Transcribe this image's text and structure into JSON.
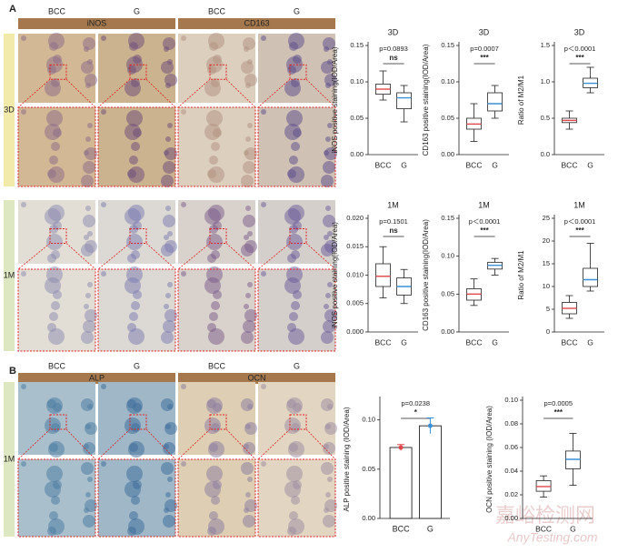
{
  "figure": {
    "panel_a": "A",
    "panel_b": "B",
    "a_headers": [
      "BCC",
      "G",
      "BCC",
      "G"
    ],
    "a_stains": [
      "iNOS",
      "CD163"
    ],
    "a_rows": [
      "3D",
      "1M"
    ],
    "b_headers": [
      "BCC",
      "G",
      "BCC",
      "G"
    ],
    "b_stains": [
      "ALP",
      "OCN"
    ],
    "b_row": "1M",
    "watermark_cn": "嘉峪检测网",
    "watermark_en": "AnyTesting.com"
  },
  "chart_data": [
    {
      "type": "box",
      "title": "3D",
      "ylabel": "iNOS positive staining(IOD/Area)",
      "ylim": [
        0,
        0.15
      ],
      "yticks": [
        {
          "value": 0,
          "label": "0.00"
        },
        0.05,
        {
          "value": 0.1,
          "label": "0.10"
        },
        0.15
      ],
      "annotation": {
        "p": "p=0.0893",
        "sig": "ns"
      },
      "series": [
        {
          "name": "BCC",
          "color": "#e0474c",
          "min": 0.075,
          "q1": 0.083,
          "median": 0.09,
          "q3": 0.097,
          "max": 0.115
        },
        {
          "name": "G",
          "color": "#3b8fd6",
          "min": 0.045,
          "q1": 0.063,
          "median": 0.078,
          "q3": 0.085,
          "max": 0.095
        }
      ]
    },
    {
      "type": "box",
      "title": "3D",
      "ylabel": "CD163 positive staining(IOD/Area)",
      "ylim": [
        0,
        0.15
      ],
      "yticks": [
        {
          "value": 0,
          "label": "0.00"
        },
        0.05,
        {
          "value": 0.1,
          "label": "0.10"
        },
        0.15
      ],
      "annotation": {
        "p": "p=0.0007",
        "sig": "***"
      },
      "series": [
        {
          "name": "BCC",
          "color": "#e0474c",
          "min": 0.018,
          "q1": 0.035,
          "median": 0.042,
          "q3": 0.05,
          "max": 0.07
        },
        {
          "name": "G",
          "color": "#3b8fd6",
          "min": 0.05,
          "q1": 0.06,
          "median": 0.07,
          "q3": 0.085,
          "max": 0.095
        }
      ]
    },
    {
      "type": "box",
      "title": "3D",
      "ylabel": "Ratio of M2/M1",
      "ylim": [
        0,
        1.5
      ],
      "yticks": [
        {
          "value": 0,
          "label": "0.0"
        },
        0.5,
        {
          "value": 1,
          "label": "1.0"
        },
        1.5
      ],
      "annotation": {
        "p": "p＜0.0001",
        "sig": "***"
      },
      "series": [
        {
          "name": "BCC",
          "color": "#e0474c",
          "min": 0.35,
          "q1": 0.44,
          "median": 0.47,
          "q3": 0.5,
          "max": 0.6
        },
        {
          "name": "G",
          "color": "#3b8fd6",
          "min": 0.85,
          "q1": 0.92,
          "median": 0.98,
          "q3": 1.05,
          "max": 1.2
        }
      ]
    },
    {
      "type": "box",
      "title": "1M",
      "ylabel": "iNOS positive staining(IOD/Area)",
      "ylim": [
        0,
        0.02
      ],
      "yticks": [
        {
          "value": 0,
          "label": "0.000"
        },
        0.005,
        {
          "value": 0.01,
          "label": "0.010"
        },
        0.015,
        {
          "value": 0.02,
          "label": "0.020"
        }
      ],
      "annotation": {
        "p": "p=0.1501",
        "sig": "ns"
      },
      "series": [
        {
          "name": "BCC",
          "color": "#e0474c",
          "min": 0.006,
          "q1": 0.008,
          "median": 0.0098,
          "q3": 0.012,
          "max": 0.015
        },
        {
          "name": "G",
          "color": "#3b8fd6",
          "min": 0.005,
          "q1": 0.0065,
          "median": 0.008,
          "q3": 0.0095,
          "max": 0.011
        }
      ]
    },
    {
      "type": "box",
      "title": "1M",
      "ylabel": "CD163 positive staining(IOD/Area)",
      "ylim": [
        0,
        0.15
      ],
      "yticks": [
        {
          "value": 0,
          "label": "0.00"
        },
        0.05,
        {
          "value": 0.1,
          "label": "0.10"
        },
        0.15
      ],
      "annotation": {
        "p": "p＜0.0001",
        "sig": "***"
      },
      "series": [
        {
          "name": "BCC",
          "color": "#e0474c",
          "min": 0.035,
          "q1": 0.042,
          "median": 0.05,
          "q3": 0.057,
          "max": 0.07
        },
        {
          "name": "G",
          "color": "#3b8fd6",
          "min": 0.075,
          "q1": 0.083,
          "median": 0.088,
          "q3": 0.092,
          "max": 0.097
        }
      ]
    },
    {
      "type": "box",
      "title": "1M",
      "ylabel": "Ratio of M2/M1",
      "ylim": [
        0,
        25
      ],
      "yticks": [
        0,
        5,
        10,
        15,
        20,
        25
      ],
      "annotation": {
        "p": "p＜0.0001",
        "sig": "***"
      },
      "series": [
        {
          "name": "BCC",
          "color": "#e0474c",
          "min": 3,
          "q1": 4,
          "median": 5.2,
          "q3": 6.5,
          "max": 8
        },
        {
          "name": "G",
          "color": "#3b8fd6",
          "min": 9,
          "q1": 10,
          "median": 11.5,
          "q3": 14,
          "max": 19.5
        }
      ]
    },
    {
      "type": "bar",
      "ylabel": "ALP positive staining (IOD/Area)",
      "ylim": [
        0,
        0.12
      ],
      "yticks": [
        {
          "value": 0,
          "label": "0.00"
        },
        0.05,
        {
          "value": 0.1,
          "label": "0.10"
        }
      ],
      "annotation": {
        "p": "p=0.0238",
        "sig": "*"
      },
      "categories": [
        "BCC",
        "G"
      ],
      "values": [
        0.072,
        0.094
      ],
      "errors": [
        0.003,
        0.008
      ],
      "colors": [
        "#e0474c",
        "#3b8fd6"
      ]
    },
    {
      "type": "box",
      "ylabel": "OCN positive staining (IOD/Area)",
      "ylim": [
        0,
        0.1
      ],
      "yticks": [
        {
          "value": 0,
          "label": "0.00"
        },
        0.02,
        0.04,
        0.06,
        0.08,
        {
          "value": 0.1,
          "label": "0.10"
        }
      ],
      "annotation": {
        "p": "p=0.0005",
        "sig": "***"
      },
      "series": [
        {
          "name": "BCC",
          "color": "#e0474c",
          "min": 0.018,
          "q1": 0.023,
          "median": 0.027,
          "q3": 0.032,
          "max": 0.036
        },
        {
          "name": "G",
          "color": "#3b8fd6",
          "min": 0.028,
          "q1": 0.042,
          "median": 0.05,
          "q3": 0.057,
          "max": 0.072
        }
      ]
    }
  ]
}
